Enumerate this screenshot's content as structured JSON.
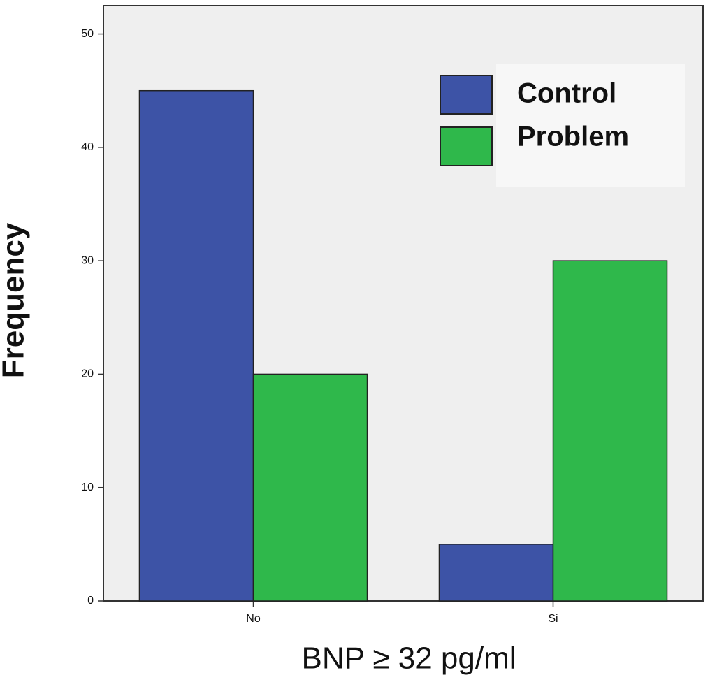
{
  "chart_data": {
    "type": "bar",
    "x_label": "BNP ≥ 32 pg/ml",
    "y_label": "Frequency",
    "categories": [
      "No",
      "Si"
    ],
    "series": [
      {
        "name": "Control",
        "color": "#3d53a6",
        "values": [
          45,
          5
        ]
      },
      {
        "name": "Problem",
        "color": "#2fb84b",
        "values": [
          20,
          30
        ]
      }
    ],
    "ylim": [
      0,
      52.5
    ],
    "yticks": [
      0,
      10,
      20,
      30,
      40,
      50
    ],
    "grid": false,
    "legend": "upper right"
  }
}
